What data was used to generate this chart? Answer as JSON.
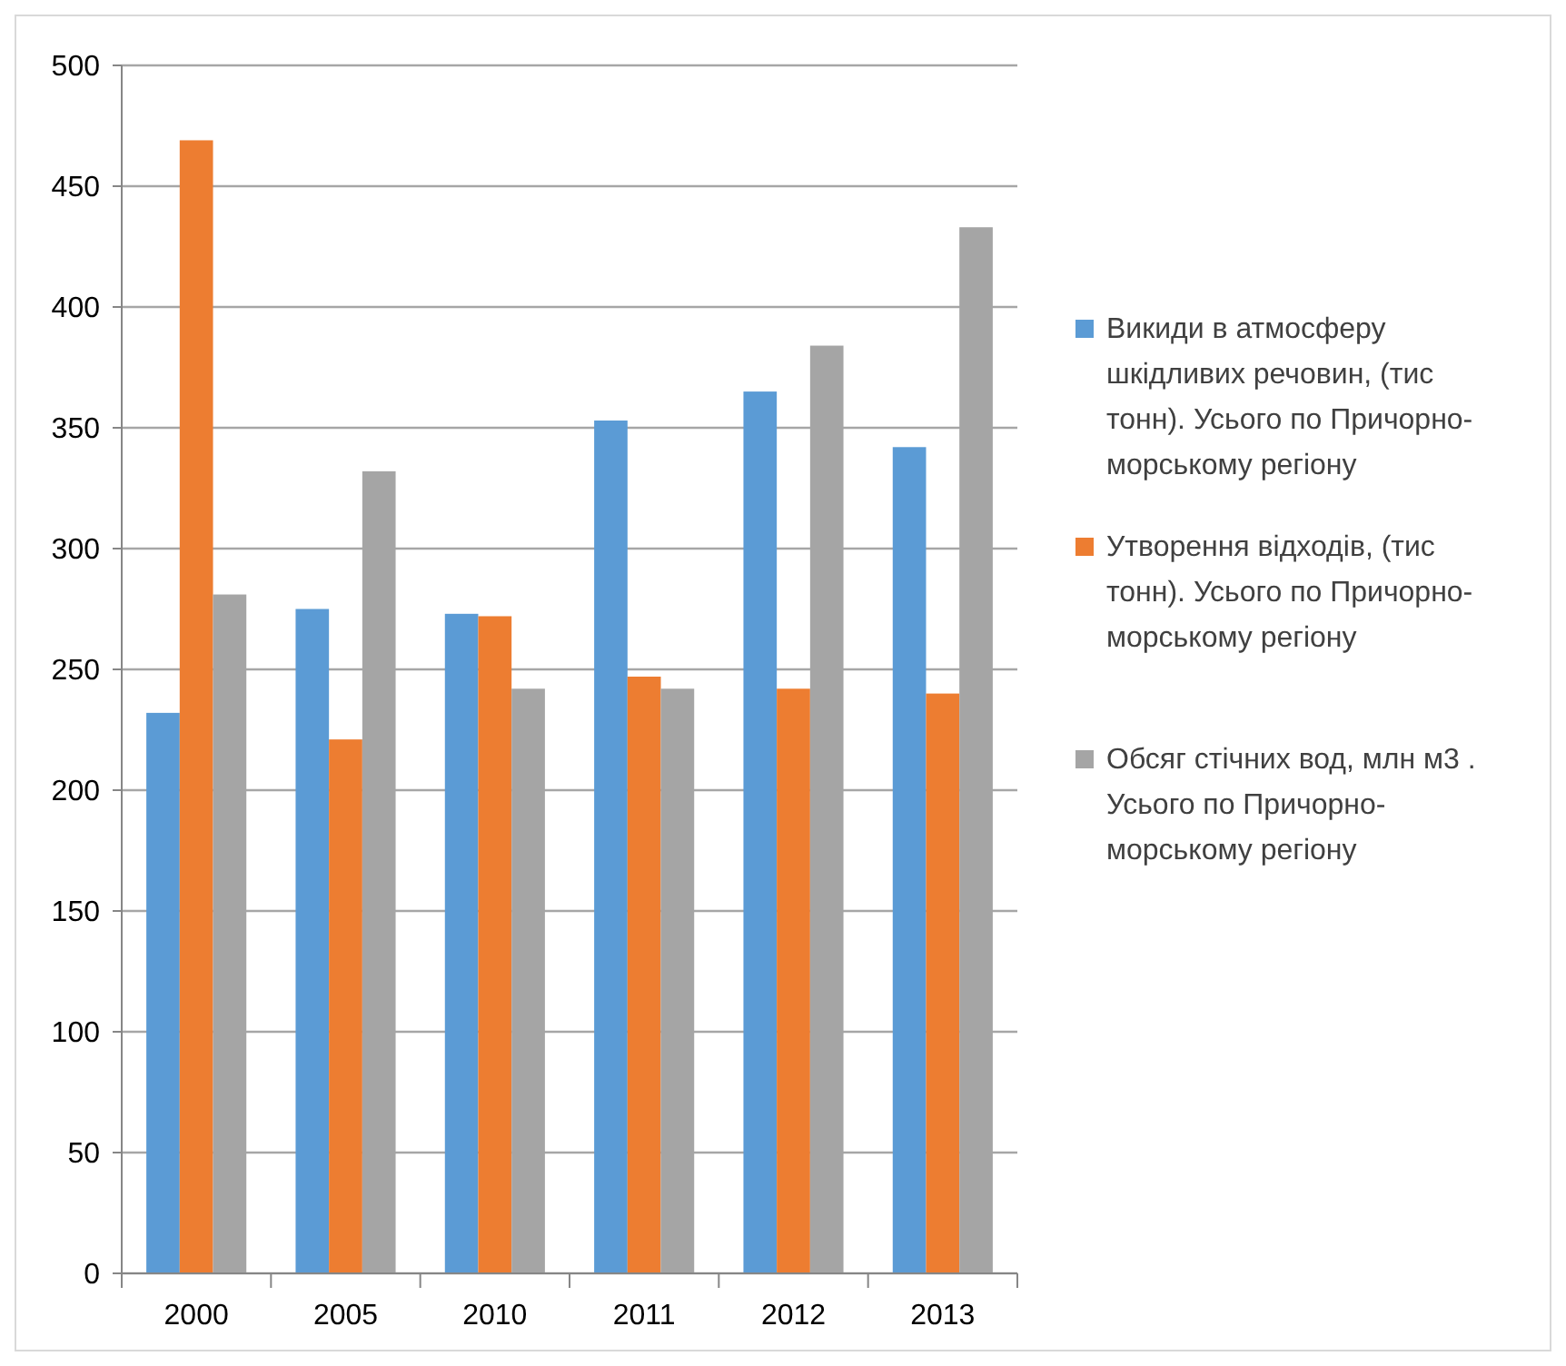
{
  "chart_data": {
    "type": "bar",
    "categories": [
      "2000",
      "2005",
      "2010",
      "2011",
      "2012",
      "2013"
    ],
    "series": [
      {
        "name": "Викиди в атмосферу шкідливих речовин, (тис тонн). Усього по Причорно-морському регіону",
        "color": "#5b9bd5",
        "values": [
          232,
          275,
          273,
          353,
          365,
          342
        ]
      },
      {
        "name": "Утворення відходів, (тис тонн). Усього по Причорно-морському регіону",
        "color": "#ed7d31",
        "values": [
          469,
          221,
          272,
          247,
          242,
          240
        ]
      },
      {
        "name": "Обсяг стічних вод, млн м3 . Усього по Причорно-морському регіону",
        "color": "#a5a5a5",
        "values": [
          281,
          332,
          242,
          242,
          384,
          433
        ]
      }
    ],
    "ylim": [
      0,
      500
    ],
    "yticks": [
      0,
      50,
      100,
      150,
      200,
      250,
      300,
      350,
      400,
      450,
      500
    ],
    "grid": "y",
    "legend": "right"
  }
}
